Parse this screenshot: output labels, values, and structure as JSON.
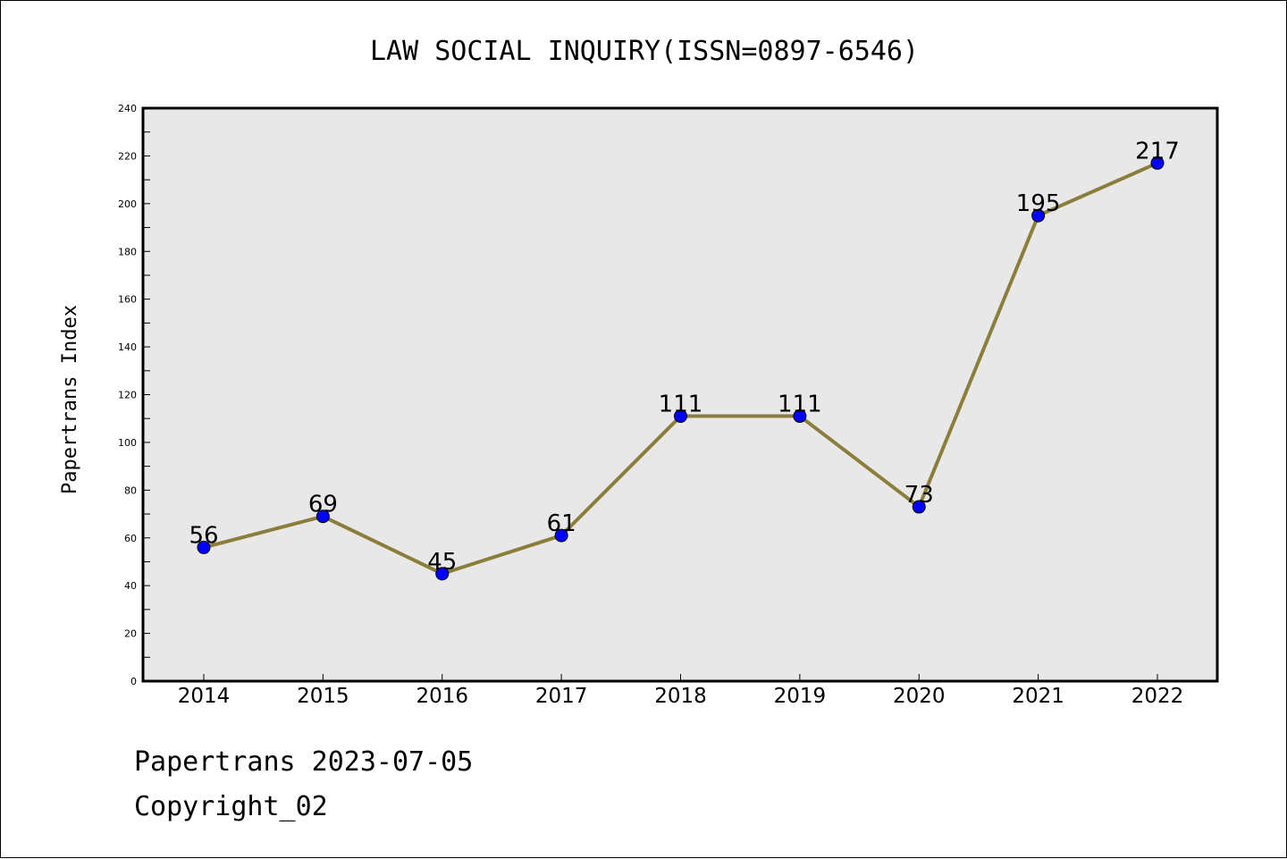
{
  "chart_data": {
    "type": "line",
    "title": "LAW SOCIAL INQUIRY(ISSN=0897-6546)",
    "xlabel": "",
    "ylabel": "Papertrans Index",
    "categories": [
      "2014",
      "2015",
      "2016",
      "2017",
      "2018",
      "2019",
      "2020",
      "2021",
      "2022"
    ],
    "values": [
      56,
      69,
      45,
      61,
      111,
      111,
      73,
      195,
      217
    ],
    "data_labels": [
      "56",
      "69",
      "45",
      "61",
      "111",
      "111",
      "73",
      "195",
      "217"
    ],
    "ylim": [
      0,
      240
    ],
    "yticks": [
      0,
      20,
      40,
      60,
      80,
      100,
      120,
      140,
      160,
      180,
      200,
      220,
      240
    ],
    "ytick_labels": [
      "0",
      "20",
      "40",
      "60",
      "80",
      "100",
      "120",
      "140",
      "160",
      "180",
      "200",
      "220",
      "240"
    ],
    "grid": false,
    "colors": {
      "line": "#8B7D3A",
      "marker": "#0000FF",
      "marker_edge": "#000000",
      "plot_background": "#E8E8E8"
    }
  },
  "footer": {
    "line1": "Papertrans 2023-07-05",
    "line2": "Copyright_02"
  }
}
